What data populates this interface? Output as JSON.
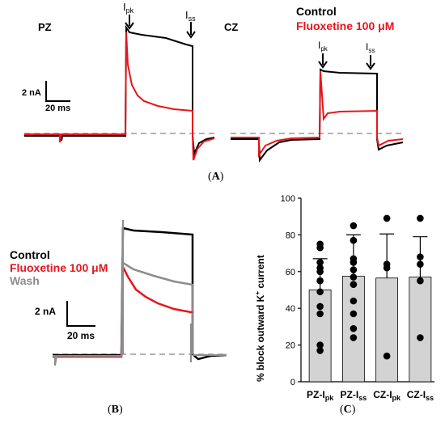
{
  "panel_a": {
    "pz_label": "PZ",
    "cz_label": "CZ",
    "ipk": {
      "main": "I",
      "sub": "pk"
    },
    "iss": {
      "main": "I",
      "sub": "ss"
    },
    "legend_control": "Control",
    "legend_fluoxetine": "Fluoxetine 100 μM",
    "scale_current": "2 nA",
    "scale_time": "20 ms",
    "caption_open": "(",
    "caption_letter": "A",
    "caption_close": ")"
  },
  "panel_b": {
    "legend_control": "Control",
    "legend_fluoxetine": "Fluoxetine 100 μM",
    "legend_wash": "Wash",
    "scale_current": "2 nA",
    "scale_time": "20 ms",
    "caption_open": "(",
    "caption_letter": "B",
    "caption_close": ")"
  },
  "panel_c": {
    "caption_open": "(",
    "caption_letter": "C",
    "caption_close": ")",
    "ylabel_main": "% block outward K",
    "ylabel_sup": "+",
    "ylabel_end": " current",
    "xlabels": [
      {
        "main": "PZ-I",
        "sub": "pk"
      },
      {
        "main": "PZ-I",
        "sub": "ss"
      },
      {
        "main": "CZ-I",
        "sub": "pk"
      },
      {
        "main": "CZ-I",
        "sub": "ss"
      }
    ]
  },
  "colors": {
    "control": "#000000",
    "fluoxetine": "#e8141c",
    "wash": "#8c8c8c",
    "bar_fill": "#d3d3d3",
    "baseline": "#9a9a9a"
  },
  "chart_data": {
    "type": "bar",
    "categories": [
      "PZ-Ipk",
      "PZ-Iss",
      "CZ-Ipk",
      "CZ-Iss"
    ],
    "values": [
      50,
      57.5,
      56.5,
      57
    ],
    "error_sd": [
      17,
      22.5,
      24,
      22
    ],
    "points": [
      [
        75,
        73,
        65,
        62,
        60,
        55,
        49,
        41,
        37,
        20,
        17
      ],
      [
        85,
        77,
        67,
        65,
        61,
        57,
        53,
        44,
        37,
        29,
        24
      ],
      [
        89,
        64,
        62,
        14
      ],
      [
        89,
        68,
        64,
        55,
        24
      ]
    ],
    "ylabel": "% block outward K+ current",
    "ylim": [
      0,
      100
    ],
    "yticks": [
      0,
      20,
      40,
      60,
      80,
      100
    ],
    "grid": false
  }
}
